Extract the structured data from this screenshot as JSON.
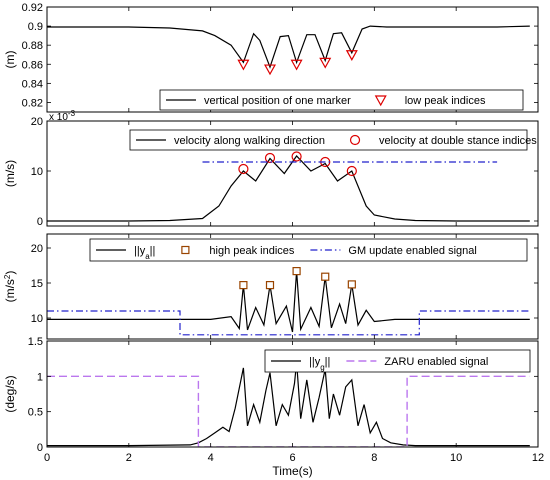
{
  "chart_data": [
    {
      "type": "line",
      "ylabel": "(m)",
      "ylim": [
        0.81,
        0.92
      ],
      "yticks": [
        0.82,
        0.84,
        0.86,
        0.88,
        0.9,
        0.92
      ],
      "ytick_labels": [
        "0.82",
        "0.84",
        "0.86",
        "0.88",
        "0.9",
        "0.92"
      ],
      "xlim": [
        0,
        12
      ],
      "legend_position": "bottom-right",
      "series": [
        {
          "name": "vertical position of one marker",
          "style": "line",
          "color": "#000000",
          "x": [
            0,
            1,
            2,
            3,
            3.8,
            4.1,
            4.5,
            4.8,
            5.05,
            5.2,
            5.45,
            5.7,
            5.9,
            6.1,
            6.35,
            6.55,
            6.8,
            7.0,
            7.2,
            7.45,
            7.7,
            7.9,
            8.3,
            9,
            10,
            11,
            11.8
          ],
          "y": [
            0.899,
            0.899,
            0.899,
            0.898,
            0.895,
            0.89,
            0.88,
            0.862,
            0.892,
            0.885,
            0.857,
            0.889,
            0.89,
            0.862,
            0.891,
            0.891,
            0.864,
            0.892,
            0.893,
            0.872,
            0.897,
            0.9,
            0.899,
            0.899,
            0.899,
            0.899,
            0.9
          ]
        },
        {
          "name": "low peak indices",
          "style": "marker",
          "marker": "triangle-down",
          "color": "#dd0000",
          "x": [
            4.8,
            5.45,
            6.1,
            6.8,
            7.45
          ],
          "y": [
            0.86,
            0.855,
            0.86,
            0.862,
            0.87
          ]
        }
      ]
    },
    {
      "type": "line",
      "ylabel": "(m/s)",
      "y_exponent": "x 10",
      "y_exponent_power": "-3",
      "ylim": [
        -1,
        20
      ],
      "yticks": [
        0,
        10,
        20
      ],
      "ytick_labels": [
        "0",
        "10",
        "20"
      ],
      "xlim": [
        0,
        12
      ],
      "legend_position": "top",
      "series": [
        {
          "name": "velocity along walking direction",
          "style": "line",
          "color": "#000000",
          "x": [
            0,
            2,
            3,
            3.8,
            4.2,
            4.5,
            4.8,
            5.1,
            5.45,
            5.8,
            6.1,
            6.45,
            6.8,
            7.1,
            7.45,
            7.8,
            8.0,
            8.5,
            9,
            10,
            11,
            11.8
          ],
          "y": [
            0,
            0,
            0.1,
            0.5,
            3,
            7,
            10,
            8,
            12.5,
            9.5,
            13,
            10,
            11.5,
            8,
            10,
            3,
            1.2,
            0.4,
            0.1,
            0,
            0,
            0
          ]
        },
        {
          "name": "velocity at double stance indices",
          "style": "marker",
          "marker": "circle",
          "color": "#dd0000",
          "x": [
            4.8,
            5.45,
            6.1,
            6.8,
            7.45
          ],
          "y": [
            10.4,
            12.6,
            12.9,
            11.8,
            10.0
          ]
        },
        {
          "name": "",
          "style": "dashdot",
          "color": "#2222cc",
          "x": [
            3.8,
            11.0
          ],
          "y": [
            11.8,
            11.8
          ]
        }
      ]
    },
    {
      "type": "line",
      "ylabel": "(m/s",
      "ylabel_sup": "2",
      "ylim": [
        7,
        22
      ],
      "yticks": [
        10,
        15,
        20
      ],
      "ytick_labels": [
        "10",
        "15",
        "20"
      ],
      "xlim": [
        0,
        12
      ],
      "legend_position": "top",
      "series": [
        {
          "name": "||y",
          "name_sub": "a",
          "name_suffix": "||",
          "style": "line",
          "color": "#000000",
          "x": [
            0,
            2,
            4,
            4.5,
            4.7,
            4.8,
            4.9,
            5.1,
            5.3,
            5.45,
            5.6,
            5.85,
            6.0,
            6.1,
            6.2,
            6.45,
            6.65,
            6.8,
            6.95,
            7.15,
            7.3,
            7.45,
            7.6,
            7.8,
            8.0,
            8.5,
            9,
            10,
            11,
            11.8
          ],
          "y": [
            9.8,
            9.8,
            9.8,
            10.2,
            8.5,
            14.7,
            8.3,
            11.5,
            9.0,
            14.7,
            9.2,
            11.7,
            8.0,
            16.7,
            8.4,
            11.5,
            8.8,
            15.9,
            8.6,
            12,
            9.2,
            14.8,
            9.0,
            11.1,
            9.5,
            9.8,
            9.8,
            9.8,
            9.8,
            9.8
          ]
        },
        {
          "name": "high peak indices",
          "style": "marker",
          "marker": "square",
          "color": "#994400",
          "x": [
            4.8,
            5.45,
            6.1,
            6.8,
            7.45
          ],
          "y": [
            14.7,
            14.7,
            16.7,
            15.9,
            14.8
          ]
        },
        {
          "name": "GM update enabled signal",
          "style": "dashdot",
          "color": "#2222cc",
          "x": [
            0,
            3.25,
            3.25,
            9.1,
            9.1,
            11.8
          ],
          "y": [
            11,
            11,
            7.6,
            7.6,
            11,
            11
          ]
        }
      ]
    },
    {
      "type": "line",
      "ylabel": "(deg/s)",
      "xlabel": "Time(s)",
      "ylim": [
        0,
        1.5
      ],
      "yticks": [
        0,
        0.5,
        1,
        1.5
      ],
      "ytick_labels": [
        "0",
        "0.5",
        "1",
        "1.5"
      ],
      "xlim": [
        0,
        12
      ],
      "xticks": [
        0,
        2,
        4,
        6,
        8,
        10,
        12
      ],
      "xtick_labels": [
        "0",
        "2",
        "4",
        "6",
        "8",
        "10",
        "12"
      ],
      "legend_position": "top-right",
      "series": [
        {
          "name": "||y",
          "name_sub": "g",
          "name_suffix": "||",
          "style": "line",
          "color": "#000000",
          "x": [
            0,
            2,
            3.5,
            3.7,
            3.9,
            4.1,
            4.3,
            4.45,
            4.6,
            4.8,
            4.9,
            5.05,
            5.2,
            5.35,
            5.45,
            5.6,
            5.75,
            5.9,
            6.05,
            6.1,
            6.2,
            6.35,
            6.5,
            6.65,
            6.8,
            6.9,
            7.0,
            7.15,
            7.3,
            7.45,
            7.6,
            7.75,
            7.9,
            8.05,
            8.2,
            8.4,
            8.7,
            9,
            10,
            11,
            11.8
          ],
          "y": [
            0.02,
            0.02,
            0.03,
            0.06,
            0.12,
            0.2,
            0.28,
            0.22,
            0.55,
            1.12,
            0.3,
            0.6,
            0.35,
            0.8,
            1.05,
            0.3,
            0.6,
            0.45,
            0.9,
            1.2,
            0.4,
            0.95,
            0.35,
            0.7,
            1.1,
            0.4,
            0.75,
            0.45,
            0.85,
            0.95,
            0.3,
            0.6,
            0.2,
            0.35,
            0.12,
            0.06,
            0.03,
            0.02,
            0.02,
            0.02,
            0.02
          ]
        },
        {
          "name": "ZARU enabled signal",
          "style": "dashed",
          "color": "#bb77ee",
          "x": [
            0,
            3.7,
            3.7,
            8.8,
            8.8,
            11.8
          ],
          "y": [
            1,
            1,
            0,
            0,
            1,
            1
          ]
        }
      ]
    }
  ]
}
